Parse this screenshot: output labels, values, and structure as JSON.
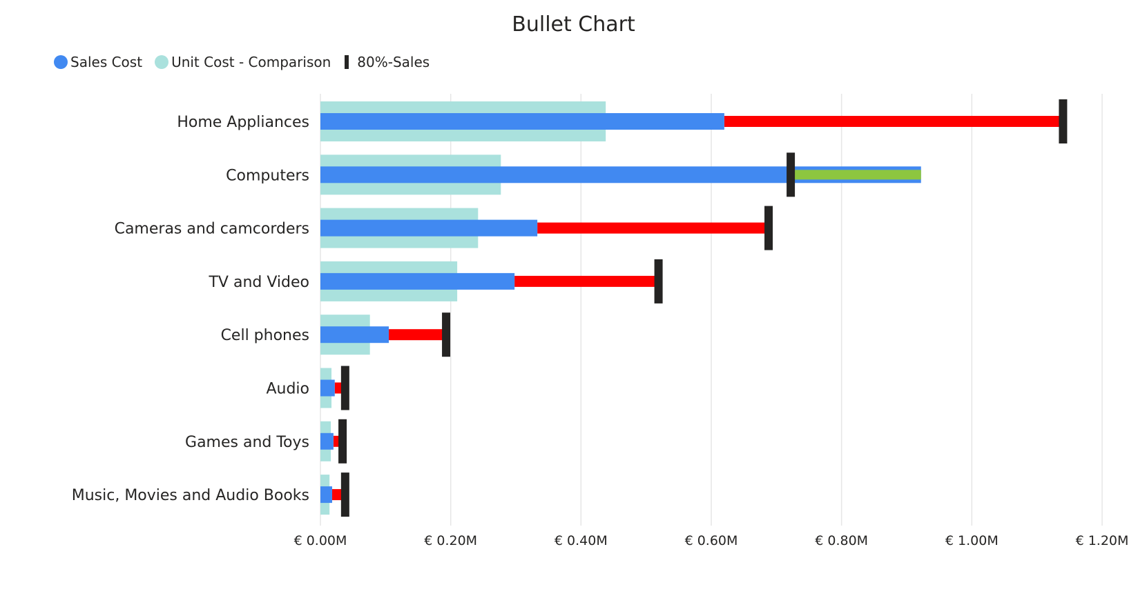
{
  "chart_data": {
    "type": "bar",
    "title": "Bullet Chart",
    "categories": [
      "Home Appliances",
      "Computers",
      "Cameras and camcorders",
      "TV and Video",
      "Cell phones",
      "Audio",
      "Games and Toys",
      "Music, Movies and Audio Books"
    ],
    "series": [
      {
        "name": "Sales Cost",
        "values": [
          0.62,
          0.72,
          0.333,
          0.298,
          0.105,
          0.022,
          0.02,
          0.018
        ]
      },
      {
        "name": "Unit Cost - Comparison",
        "values": [
          0.438,
          0.277,
          0.242,
          0.21,
          0.076,
          0.017,
          0.016,
          0.014
        ]
      },
      {
        "name": "80%-Sales",
        "values": [
          1.14,
          0.722,
          0.688,
          0.519,
          0.193,
          0.038,
          0.034,
          0.038
        ]
      }
    ],
    "over_target_extent": [
      null,
      0.922,
      null,
      null,
      null,
      null,
      null,
      null
    ],
    "xlim": [
      0,
      1.2
    ],
    "x_ticks": [
      0,
      0.2,
      0.4,
      0.6,
      0.8,
      1.0,
      1.2
    ],
    "x_tick_labels": [
      "€ 0.00M",
      "€ 0.20M",
      "€ 0.40M",
      "€ 0.60M",
      "€ 0.80M",
      "€ 1.00M",
      "€ 1.20M"
    ],
    "legend_position": "top-left",
    "grid": true,
    "colors": {
      "sales_cost": "#4189F1",
      "comparison": "#AAE1DD",
      "target": "#252423",
      "below_target": "#FF0000",
      "above_target": "#8DC63F",
      "gridline": "#E6E6E6"
    }
  }
}
